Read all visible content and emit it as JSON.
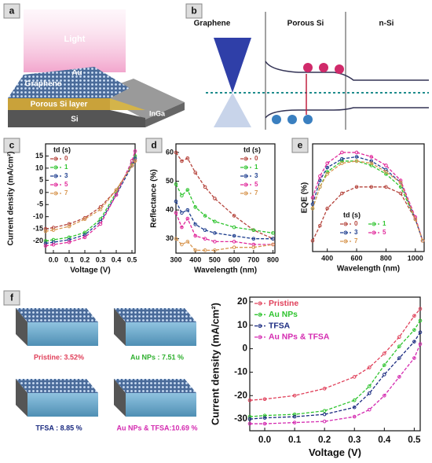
{
  "panel_labels": [
    "a",
    "b",
    "c",
    "d",
    "e",
    "f"
  ],
  "panel_a": {
    "light": "Light",
    "au": "Au",
    "graphene": "Graphene",
    "porous": "Porous Si layer",
    "inga": "InGa",
    "si": "Si"
  },
  "panel_b": {
    "graphene": "Graphene",
    "porous": "Porous Si",
    "nsi": "n-Si"
  },
  "panel_f": {
    "pristine": "Pristine: 3.52%",
    "au": "Au NPs : 7.51 %",
    "tfsa": "TFSA : 8.85 %",
    "both": "Au NPs & TFSA:10.69 %"
  },
  "chart_data": [
    {
      "type": "line",
      "xlabel": "Voltage (V)",
      "ylabel": "Current density (mA/cm²)",
      "legend_title": "td (s)",
      "legend": "upper left",
      "linestyle": "dashed",
      "xlim": [
        -0.05,
        0.52
      ],
      "ylim": [
        -25,
        20
      ],
      "xticks": [
        {
          "value": 0,
          "label": "0.0"
        },
        0.1,
        0.2,
        0.3,
        0.4,
        0.5
      ],
      "yticks": [
        -20,
        -15,
        -10,
        -5,
        0,
        5,
        10,
        15
      ],
      "x": [
        -0.05,
        0,
        0.1,
        0.2,
        0.3,
        0.4,
        0.5,
        0.52
      ],
      "series": [
        {
          "name": "0",
          "color": "#b5443c",
          "values": [
            -15,
            -14.5,
            -13,
            -10.5,
            -6,
            1,
            11,
            13
          ]
        },
        {
          "name": "1",
          "color": "#2fc42f",
          "values": [
            -20,
            -19.5,
            -18.5,
            -16.5,
            -11,
            0,
            12,
            15
          ]
        },
        {
          "name": "3",
          "color": "#1f3f8f",
          "values": [
            -21,
            -20.5,
            -19.5,
            -17.5,
            -12,
            -1,
            11,
            14
          ]
        },
        {
          "name": "5",
          "color": "#e0289a",
          "values": [
            -22,
            -21.5,
            -20.5,
            -18.5,
            -13,
            -1,
            13,
            17
          ]
        },
        {
          "name": "7",
          "color": "#d89650",
          "values": [
            -16,
            -15.5,
            -14,
            -11,
            -7,
            1,
            11,
            13
          ]
        }
      ]
    },
    {
      "type": "line",
      "xlabel": "Wavelength (nm)",
      "ylabel": "Reflectance (%)",
      "legend_title": "td (s)",
      "legend": "upper right",
      "linestyle": "dashed",
      "xlim": [
        300,
        810
      ],
      "ylim": [
        25,
        63
      ],
      "xticks": [
        300,
        400,
        500,
        600,
        700,
        800
      ],
      "yticks": [
        30,
        40,
        50,
        60
      ],
      "x": [
        300,
        330,
        360,
        400,
        450,
        500,
        600,
        700,
        800
      ],
      "series": [
        {
          "name": "0",
          "color": "#b5443c",
          "values": [
            60,
            57,
            58,
            53,
            48,
            44,
            38,
            33,
            30
          ]
        },
        {
          "name": "1",
          "color": "#2fc42f",
          "values": [
            49,
            45,
            47,
            41,
            38,
            36,
            34,
            33,
            32
          ]
        },
        {
          "name": "3",
          "color": "#1f3f8f",
          "values": [
            43,
            39,
            40,
            35,
            33,
            32,
            31,
            30,
            30
          ]
        },
        {
          "name": "5",
          "color": "#e0289a",
          "values": [
            39,
            34,
            37,
            31,
            30,
            29,
            29,
            28,
            28
          ]
        },
        {
          "name": "7",
          "color": "#d89650",
          "values": [
            30,
            28,
            29,
            26,
            26,
            26,
            27,
            27,
            28
          ]
        }
      ]
    },
    {
      "type": "line",
      "xlabel": "Wavelength (nm)",
      "ylabel": "EQE (%)",
      "legend_title": "td (s)",
      "legend": "lower center",
      "legend_columns": 2,
      "linestyle": "dashed",
      "xlim": [
        300,
        1060
      ],
      "ylim": [
        0,
        50
      ],
      "xticks": [
        400,
        600,
        800,
        1000
      ],
      "x": [
        300,
        350,
        400,
        500,
        600,
        700,
        800,
        900,
        1000,
        1050
      ],
      "series": [
        {
          "name": "0",
          "color": "#b5443c",
          "values": [
            5,
            12,
            20,
            27,
            30,
            30,
            30,
            27,
            15,
            5
          ]
        },
        {
          "name": "1",
          "color": "#2fc42f",
          "values": [
            20,
            30,
            37,
            42,
            42,
            40,
            36,
            30,
            15,
            5
          ]
        },
        {
          "name": "3",
          "color": "#1f3f8f",
          "values": [
            22,
            33,
            39,
            43,
            44,
            42,
            38,
            32,
            15,
            5
          ]
        },
        {
          "name": "5",
          "color": "#e0289a",
          "values": [
            25,
            35,
            41,
            46,
            46,
            44,
            40,
            33,
            16,
            5
          ]
        },
        {
          "name": "7",
          "color": "#d89650",
          "values": [
            20,
            30,
            36,
            41,
            42,
            41,
            37,
            32,
            15,
            5
          ]
        }
      ]
    },
    {
      "type": "line",
      "xlabel": "Voltage (V)",
      "ylabel": "Current density (mA/cm²)",
      "legend": "upper left",
      "linestyle": "dashed",
      "xlim": [
        -0.05,
        0.52
      ],
      "ylim": [
        -35,
        22
      ],
      "xticks": [
        {
          "value": 0,
          "label": "0.0"
        },
        0.1,
        0.2,
        0.3,
        0.4,
        0.5
      ],
      "yticks": [
        -30,
        -20,
        -10,
        0,
        10,
        20
      ],
      "x": [
        -0.05,
        0,
        0.1,
        0.2,
        0.3,
        0.35,
        0.4,
        0.45,
        0.5,
        0.52
      ],
      "series": [
        {
          "name": "Pristine",
          "color": "#e0405a",
          "values": [
            -22,
            -21.5,
            -20,
            -17,
            -12,
            -8,
            -2,
            5,
            14,
            17
          ]
        },
        {
          "name": "Au NPs",
          "color": "#2fc42f",
          "values": [
            -29,
            -28.5,
            -28,
            -26.5,
            -22,
            -16,
            -7,
            1,
            8,
            12
          ]
        },
        {
          "name": "TFSA",
          "color": "#1a2a80",
          "values": [
            -30,
            -29.5,
            -29,
            -28,
            -25,
            -19,
            -11,
            -4,
            3,
            7
          ]
        },
        {
          "name": "Au NPs & TFSA",
          "color": "#d42ab0",
          "values": [
            -32,
            -32,
            -31.5,
            -31,
            -29,
            -26,
            -20,
            -12,
            -4,
            2
          ]
        }
      ]
    }
  ]
}
